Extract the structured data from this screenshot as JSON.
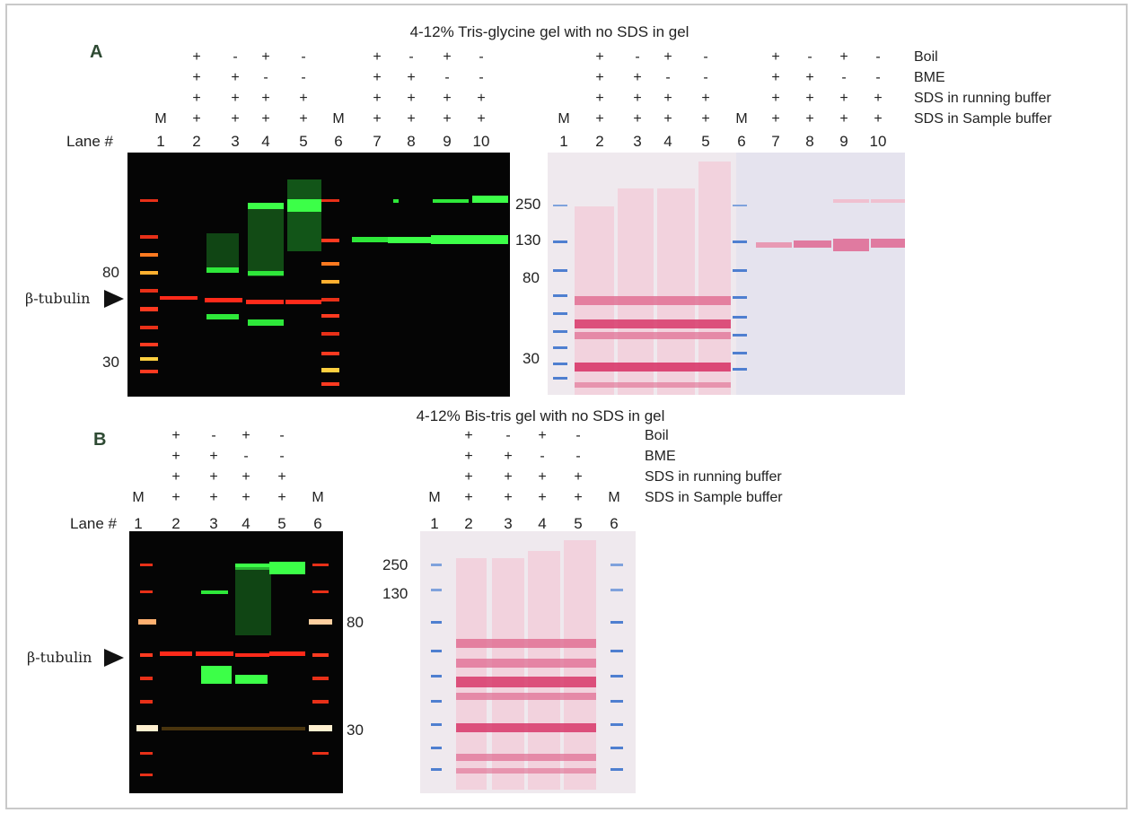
{
  "panel_a": {
    "letter": "A",
    "title": "4-12% Tris-glycine gel with no SDS in gel",
    "conditions": [
      "Boil",
      "BME",
      "SDS in running buffer",
      "SDS in Sample buffer"
    ],
    "lane_header": "Lane #",
    "lane_numbers": [
      "1",
      "2",
      "3",
      "4",
      "5",
      "6",
      "7",
      "8",
      "9",
      "10"
    ],
    "marker_symbol": "M",
    "sign_rows": {
      "boil": [
        "",
        "+",
        "-",
        "+",
        "-",
        "",
        "+",
        "-",
        "+",
        "-"
      ],
      "bme": [
        "",
        "+",
        "+",
        "-",
        "-",
        "",
        "+",
        "+",
        "-",
        "-"
      ],
      "sds_running": [
        "",
        "+",
        "+",
        "+",
        "+",
        "",
        "+",
        "+",
        "+",
        "+"
      ],
      "sds_sample": [
        "M",
        "+",
        "+",
        "+",
        "+",
        "M",
        "+",
        "+",
        "+",
        "+"
      ]
    },
    "fluor_mw": [
      "80",
      "30"
    ],
    "middle_mw": [
      "250",
      "130",
      "80",
      "30"
    ],
    "band_label": "β-tubulin"
  },
  "panel_b": {
    "letter": "B",
    "title": "4-12% Bis-tris gel with no SDS in gel",
    "conditions": [
      "Boil",
      "BME",
      "SDS in running buffer",
      "SDS in Sample buffer"
    ],
    "lane_header": "Lane #",
    "lane_numbers": [
      "1",
      "2",
      "3",
      "4",
      "5",
      "6"
    ],
    "marker_symbol": "M",
    "sign_rows": {
      "boil": [
        "",
        "+",
        "-",
        "+",
        "-",
        ""
      ],
      "bme": [
        "",
        "+",
        "+",
        "-",
        "-",
        ""
      ],
      "sds_running": [
        "",
        "+",
        "+",
        "+",
        "+",
        ""
      ],
      "sds_sample": [
        "M",
        "+",
        "+",
        "+",
        "+",
        "M"
      ]
    },
    "fluor_mw": [
      "80",
      "30"
    ],
    "ponceau_mw": [
      "250",
      "130"
    ],
    "band_label": "β-tubulin"
  },
  "colors": {
    "fluor_bg": "#050505",
    "red_band": "#ff2a1a",
    "green_band": "#2ee83a",
    "ponceau_bg": "#efe9ee",
    "ponceau_band": "#d8386a",
    "ladder_blue": "#4f7fd0",
    "panel_letter": "#2e4a33"
  }
}
